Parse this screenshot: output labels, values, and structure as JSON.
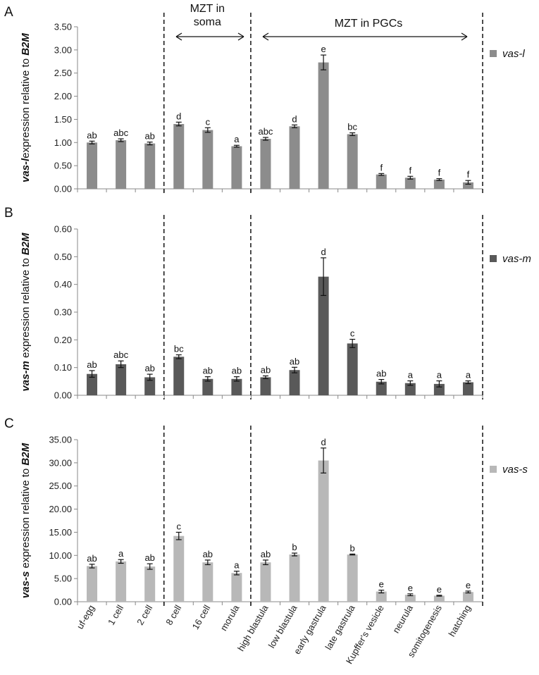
{
  "chart_data": {
    "type": "bar",
    "categories": [
      "uf-egg",
      "1 cell",
      "2 cell",
      "8 cell",
      "16 cell",
      "morula",
      "high blastula",
      "low blastula",
      "early gastrula",
      "late gastrula",
      "Kupffer's vesicle",
      "neurula",
      "somitogenesis",
      "hatching"
    ],
    "annotations": {
      "soma": "MZT in soma",
      "soma_line1": "MZT in",
      "soma_line2": "soma",
      "pgcs": "MZT in PGCs"
    },
    "panels": [
      {
        "panel": "A",
        "gene": "vas-l",
        "legend": "vas-l",
        "ylabel_gene": "vas-l",
        "ylabel_rest": "expression relative to ",
        "ylabel_ref": "B2M",
        "color": "#8c8c8c",
        "ylim": [
          0,
          3.5
        ],
        "yticks": [
          "0.00",
          "0.50",
          "1.00",
          "1.50",
          "2.00",
          "2.50",
          "3.00",
          "3.50"
        ],
        "tick_values": [
          0,
          0.5,
          1.0,
          1.5,
          2.0,
          2.5,
          3.0,
          3.5
        ],
        "values": [
          1.0,
          1.05,
          0.98,
          1.4,
          1.27,
          0.92,
          1.08,
          1.35,
          2.73,
          1.18,
          0.31,
          0.24,
          0.2,
          0.14
        ],
        "errors": [
          0.03,
          0.03,
          0.03,
          0.04,
          0.05,
          0.02,
          0.03,
          0.03,
          0.16,
          0.03,
          0.02,
          0.03,
          0.02,
          0.04
        ],
        "letters": [
          "ab",
          "abc",
          "ab",
          "d",
          "c",
          "a",
          "abc",
          "d",
          "e",
          "bc",
          "f",
          "f",
          "f",
          "f"
        ]
      },
      {
        "panel": "B",
        "gene": "vas-m",
        "legend": "vas-m",
        "ylabel_gene": "vas-m",
        "ylabel_rest": " expression relative to ",
        "ylabel_ref": "B2M",
        "color": "#595959",
        "ylim": [
          0,
          0.6
        ],
        "yticks": [
          "0.00",
          "0.10",
          "0.20",
          "0.30",
          "0.40",
          "0.50",
          "0.60"
        ],
        "tick_values": [
          0,
          0.1,
          0.2,
          0.3,
          0.4,
          0.5,
          0.6
        ],
        "values": [
          0.077,
          0.112,
          0.065,
          0.139,
          0.059,
          0.059,
          0.065,
          0.091,
          0.428,
          0.187,
          0.049,
          0.044,
          0.041,
          0.047
        ],
        "errors": [
          0.012,
          0.012,
          0.011,
          0.007,
          0.008,
          0.008,
          0.005,
          0.01,
          0.068,
          0.015,
          0.008,
          0.008,
          0.011,
          0.005
        ],
        "letters": [
          "ab",
          "abc",
          "ab",
          "bc",
          "ab",
          "ab",
          "ab",
          "ab",
          "d",
          "c",
          "ab",
          "a",
          "a",
          "a"
        ]
      },
      {
        "panel": "C",
        "gene": "vas-s",
        "legend": "vas-s",
        "ylabel_gene": "vas-s",
        "ylabel_rest": " expression relative to ",
        "ylabel_ref": "B2M",
        "color": "#b8b8b8",
        "ylim": [
          0,
          35
        ],
        "yticks": [
          "0.00",
          "5.00",
          "10.00",
          "15.00",
          "20.00",
          "25.00",
          "30.00",
          "35.00"
        ],
        "tick_values": [
          0,
          5,
          10,
          15,
          20,
          25,
          30,
          35
        ],
        "values": [
          7.7,
          8.7,
          7.6,
          14.2,
          8.5,
          6.2,
          8.5,
          10.2,
          30.5,
          10.2,
          2.2,
          1.5,
          1.3,
          2.1
        ],
        "errors": [
          0.4,
          0.4,
          0.6,
          0.8,
          0.5,
          0.4,
          0.5,
          0.3,
          2.7,
          0.1,
          0.3,
          0.2,
          0.1,
          0.2
        ],
        "letters": [
          "ab",
          "a",
          "ab",
          "c",
          "ab",
          "a",
          "ab",
          "b",
          "d",
          "b",
          "e",
          "e",
          "e",
          "e"
        ]
      }
    ]
  }
}
